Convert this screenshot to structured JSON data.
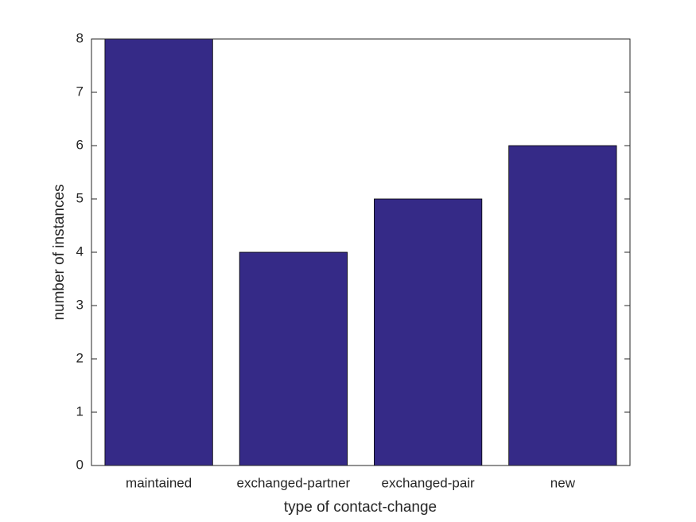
{
  "chart_data": {
    "type": "bar",
    "xlabel": "type of contact-change",
    "ylabel": "number of instances",
    "categories": [
      "maintained",
      "exchanged-partner",
      "exchanged-pair",
      "new"
    ],
    "values": [
      8,
      4,
      5,
      6
    ],
    "color": "#352a87",
    "ylim": [
      0,
      8
    ],
    "yticks": [
      0,
      1,
      2,
      3,
      4,
      5,
      6,
      7,
      8
    ],
    "grid": false
  }
}
